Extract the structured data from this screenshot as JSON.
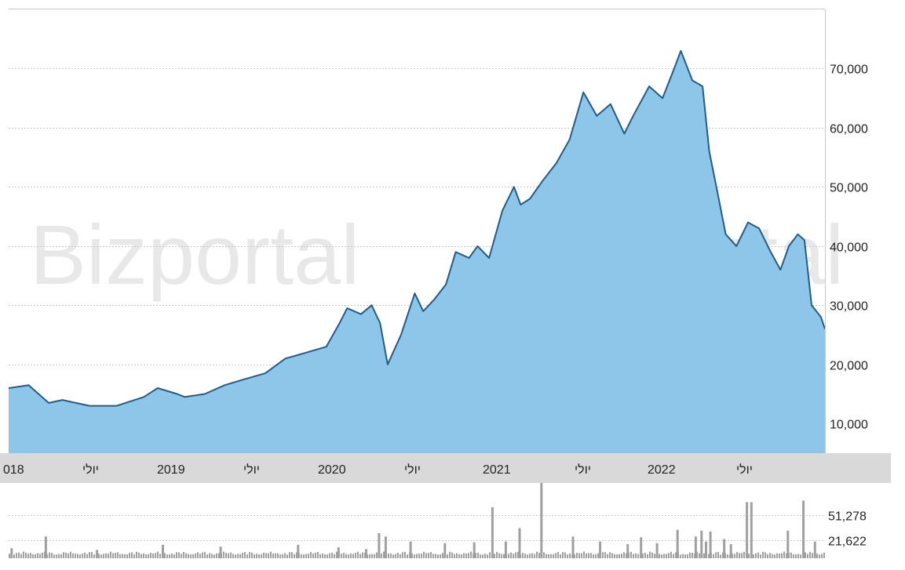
{
  "watermark": "Bizportal",
  "colors": {
    "area_fill": "#8ec6ea",
    "area_line": "#1f5d8a",
    "volume_bar": "#a0a0a0",
    "axis_band": "#d9d9d9",
    "grid": "#c8c8c8"
  },
  "chart_data": [
    {
      "type": "area",
      "title": "",
      "xlabel": "",
      "ylabel": "",
      "x_ticks": [
        "018",
        "יולי",
        "2019",
        "יולי",
        "2020",
        "יולי",
        "2021",
        "יולי",
        "2022",
        "יולי"
      ],
      "y_ticks": [
        "10,000",
        "20,000",
        "30,000",
        "40,000",
        "50,000",
        "60,000",
        "70,000"
      ],
      "y_tick_values": [
        10000,
        20000,
        30000,
        40000,
        50000,
        60000,
        70000
      ],
      "ylim": [
        5000,
        80000
      ],
      "xlim": [
        "2017-12-01",
        "2022-12-10"
      ],
      "grid": true,
      "series": [
        {
          "x": [
            "2017-12-01",
            "2018-01-15",
            "2018-03-01",
            "2018-04-01",
            "2018-05-01",
            "2018-06-01",
            "2018-08-01",
            "2018-10-01",
            "2018-11-01",
            "2018-12-15",
            "2019-01-01",
            "2019-02-15",
            "2019-04-01",
            "2019-05-15",
            "2019-07-01",
            "2019-08-15",
            "2019-10-01",
            "2019-11-15",
            "2019-12-15",
            "2020-01-01",
            "2020-02-01",
            "2020-02-25",
            "2020-03-15",
            "2020-04-01",
            "2020-05-01",
            "2020-06-01",
            "2020-06-20",
            "2020-07-15",
            "2020-08-10",
            "2020-09-01",
            "2020-10-01",
            "2020-10-20",
            "2020-11-15",
            "2020-12-15",
            "2021-01-10",
            "2021-01-25",
            "2021-02-15",
            "2021-03-15",
            "2021-04-15",
            "2021-05-15",
            "2021-06-15",
            "2021-07-15",
            "2021-08-15",
            "2021-09-15",
            "2021-10-05",
            "2021-11-10",
            "2021-12-10",
            "2022-01-05",
            "2022-01-20",
            "2022-02-15",
            "2022-03-10",
            "2022-03-25",
            "2022-04-10",
            "2022-05-01",
            "2022-05-25",
            "2022-06-20",
            "2022-07-15",
            "2022-08-10",
            "2022-09-01",
            "2022-09-20",
            "2022-10-10",
            "2022-10-25",
            "2022-11-10",
            "2022-12-01",
            "2022-12-10"
          ],
          "values": [
            16000,
            16500,
            13500,
            14000,
            13500,
            13000,
            13000,
            14500,
            16000,
            15000,
            14500,
            15000,
            16500,
            17500,
            18500,
            21000,
            22000,
            23000,
            27000,
            29500,
            28500,
            30000,
            27000,
            20000,
            25000,
            32000,
            29000,
            31000,
            33500,
            39000,
            38000,
            40000,
            38000,
            46000,
            50000,
            47000,
            48000,
            51000,
            54000,
            58000,
            66000,
            62000,
            64000,
            59000,
            62000,
            67000,
            65000,
            70000,
            73000,
            68000,
            67000,
            56000,
            50000,
            42000,
            40000,
            44000,
            43000,
            39000,
            36000,
            40000,
            42000,
            41000,
            30000,
            28000,
            26000
          ]
        }
      ]
    },
    {
      "type": "bar",
      "title": "",
      "y_ticks": [
        "21,622",
        "51,278"
      ],
      "y_tick_values": [
        21622,
        51278
      ],
      "ylim": [
        0,
        90000
      ],
      "grid": true,
      "series": [
        {
          "x": [
            "2017-12-05",
            "2018-02-20",
            "2018-06-15",
            "2018-11-10",
            "2019-03-20",
            "2019-09-10",
            "2019-12-10",
            "2020-02-10",
            "2020-03-10",
            "2020-03-25",
            "2020-05-20",
            "2020-08-05",
            "2020-10-10",
            "2020-11-20",
            "2020-12-20",
            "2021-01-20",
            "2021-03-10",
            "2021-05-20",
            "2021-07-20",
            "2021-09-20",
            "2021-10-20",
            "2021-11-25",
            "2022-01-10",
            "2022-02-20",
            "2022-03-05",
            "2022-03-15",
            "2022-03-25",
            "2022-04-25",
            "2022-05-10",
            "2022-06-15",
            "2022-06-25",
            "2022-09-15",
            "2022-10-20",
            "2022-11-15"
          ],
          "values": [
            12000,
            26000,
            10000,
            16000,
            14000,
            16000,
            13000,
            11000,
            30000,
            26000,
            20000,
            18000,
            19000,
            61000,
            20000,
            36000,
            90000,
            26000,
            20000,
            17000,
            25000,
            18000,
            34000,
            26000,
            33000,
            20000,
            32000,
            23000,
            17000,
            67000,
            67000,
            33000,
            69000,
            20000
          ]
        }
      ],
      "baseline": 8000
    }
  ]
}
